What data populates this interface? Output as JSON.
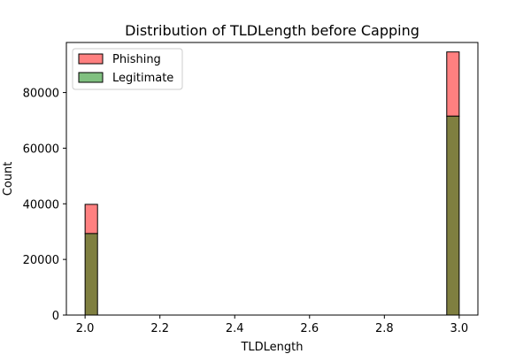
{
  "chart_data": {
    "type": "bar",
    "title": "Distribution of TLDLength before Capping",
    "xlabel": "TLDLength",
    "ylabel": "Count",
    "xlim": [
      1.95,
      3.05
    ],
    "ylim": [
      0,
      98000
    ],
    "xticks": [
      2.0,
      2.2,
      2.4,
      2.6,
      2.8,
      3.0
    ],
    "xtick_labels": [
      "2.0",
      "2.2",
      "2.4",
      "2.6",
      "2.8",
      "3.0"
    ],
    "yticks": [
      0,
      20000,
      40000,
      60000,
      80000
    ],
    "ytick_labels": [
      "0",
      "20000",
      "40000",
      "60000",
      "80000"
    ],
    "legend_position": "top-left",
    "grid": false,
    "bins": [
      {
        "x0": 2.0,
        "x1": 2.0333
      },
      {
        "x0": 2.9667,
        "x1": 3.0
      }
    ],
    "series": [
      {
        "name": "Phishing",
        "color": "#ff8080",
        "overlap_color": "#7f7f40",
        "values": [
          39800,
          94600
        ]
      },
      {
        "name": "Legitimate",
        "color": "#80c080",
        "values": [
          29300,
          71500
        ]
      }
    ]
  }
}
